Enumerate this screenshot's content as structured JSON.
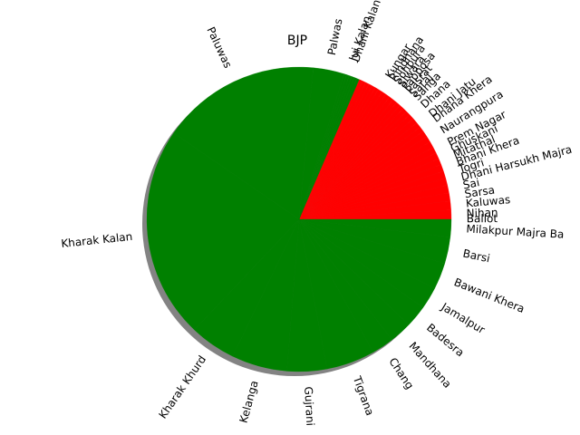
{
  "chart_data": {
    "type": "pie",
    "title": "BJP",
    "shadow": true,
    "colors": {
      "green": "#008000",
      "red": "#ff0000"
    },
    "slices": [
      {
        "label": "Ballot",
        "value": 0.05,
        "color": "red"
      },
      {
        "label": "Nihan",
        "value": 1.0,
        "color": "red"
      },
      {
        "label": "Kaluwas",
        "value": 1.0,
        "color": "red"
      },
      {
        "label": "Sarsa",
        "value": 0.9,
        "color": "red"
      },
      {
        "label": "Sai",
        "value": 0.9,
        "color": "red"
      },
      {
        "label": "Dhani Harsukh Majra",
        "value": 0.8,
        "color": "red"
      },
      {
        "label": "Togri",
        "value": 0.8,
        "color": "red"
      },
      {
        "label": "Bhani Khera",
        "value": 0.8,
        "color": "red"
      },
      {
        "label": "Mitathal",
        "value": 0.7,
        "color": "red"
      },
      {
        "label": "Ghuskani",
        "value": 0.7,
        "color": "red"
      },
      {
        "label": "Prem Nagar",
        "value": 0.7,
        "color": "red"
      },
      {
        "label": "",
        "value": 0.7,
        "color": "red"
      },
      {
        "label": "Naurangpura",
        "value": 0.7,
        "color": "red"
      },
      {
        "label": "",
        "value": 0.7,
        "color": "red"
      },
      {
        "label": "Dhana Khera",
        "value": 0.6,
        "color": "red"
      },
      {
        "label": "Dhani Jatu",
        "value": 0.6,
        "color": "red"
      },
      {
        "label": "",
        "value": 0.6,
        "color": "red"
      },
      {
        "label": "Dhana",
        "value": 0.6,
        "color": "red"
      },
      {
        "label": "",
        "value": 0.5,
        "color": "red"
      },
      {
        "label": "Sanga",
        "value": 0.5,
        "color": "red"
      },
      {
        "label": "Saraj",
        "value": 0.5,
        "color": "red"
      },
      {
        "label": "Pasrat",
        "value": 0.5,
        "color": "red"
      },
      {
        "label": "Papposa",
        "value": 0.5,
        "color": "red"
      },
      {
        "label": "Siwara",
        "value": 0.5,
        "color": "red"
      },
      {
        "label": "Sohpura",
        "value": 0.5,
        "color": "red"
      },
      {
        "label": "Rindhana",
        "value": 0.5,
        "color": "red"
      },
      {
        "label": "Kungar",
        "value": 0.5,
        "color": "red"
      },
      {
        "label": "",
        "value": 0.4,
        "color": "red"
      },
      {
        "label": "",
        "value": 0.4,
        "color": "red"
      },
      {
        "label": "",
        "value": 0.4,
        "color": "red"
      },
      {
        "label": "",
        "value": 0.4,
        "color": "red"
      },
      {
        "label": "",
        "value": 0.4,
        "color": "red"
      },
      {
        "label": "",
        "value": 0.4,
        "color": "red"
      },
      {
        "label": "",
        "value": 0.3,
        "color": "green"
      },
      {
        "label": "",
        "value": 0.3,
        "color": "green"
      },
      {
        "label": "",
        "value": 0.3,
        "color": "green"
      },
      {
        "label": "Dhani Kalan",
        "value": 0.3,
        "color": "green"
      },
      {
        "label": "Jui Kalan",
        "value": 0.3,
        "color": "green"
      },
      {
        "label": "",
        "value": 0.3,
        "color": "green"
      },
      {
        "label": "Palwas",
        "value": 3.5,
        "color": "green"
      },
      {
        "label": "Paluwas",
        "value": 18.0,
        "color": "green"
      },
      {
        "label": "Kharak Kalan",
        "value": 24.0,
        "color": "green"
      },
      {
        "label": "Kharak Khurd",
        "value": 5.2,
        "color": "green"
      },
      {
        "label": "Kelanga",
        "value": 6.3,
        "color": "green"
      },
      {
        "label": "Gujrani",
        "value": 4.5,
        "color": "green"
      },
      {
        "label": "Tigrana",
        "value": 5.5,
        "color": "green"
      },
      {
        "label": "Chang",
        "value": 2.5,
        "color": "green"
      },
      {
        "label": "Mandhana",
        "value": 2.5,
        "color": "green"
      },
      {
        "label": "Badesra",
        "value": 2.5,
        "color": "green"
      },
      {
        "label": "Jamalpur",
        "value": 2.5,
        "color": "green"
      },
      {
        "label": "Bawani Khera",
        "value": 3.0,
        "color": "green"
      },
      {
        "label": "Barsi",
        "value": 3.0,
        "color": "green"
      },
      {
        "label": "Milakpur Majra Ba",
        "value": 2.0,
        "color": "green"
      }
    ]
  }
}
